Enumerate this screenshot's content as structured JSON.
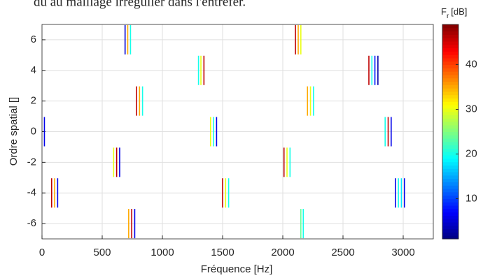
{
  "chart_data": {
    "type": "heatmap",
    "caption": "dû au maillage irrégulier dans l'entrefer.",
    "xlabel": "Fréquence [Hz]",
    "ylabel": "Ordre spatial []",
    "colorbar_label": {
      "main": "F",
      "sub": "r",
      "unit": "[dB]"
    },
    "colormap": "jet",
    "clim": [
      1,
      49
    ],
    "cticks": [
      10,
      20,
      30,
      40
    ],
    "xlim": [
      0,
      3250
    ],
    "ylim": [
      -7,
      7
    ],
    "xticks": [
      0,
      500,
      1000,
      1500,
      2000,
      2500,
      3000
    ],
    "yticks": [
      -6,
      -4,
      -2,
      0,
      2,
      4,
      6
    ],
    "grid": true,
    "x": [
      690,
      712,
      735,
      2105,
      2128,
      2150,
      1300,
      1320,
      1345,
      2715,
      2740,
      2765,
      2790,
      785,
      810,
      835,
      2205,
      2230,
      2255,
      20,
      1400,
      1425,
      1450,
      2850,
      2875,
      2900,
      595,
      620,
      645,
      2010,
      2035,
      2060,
      80,
      105,
      130,
      1500,
      1525,
      1550,
      2935,
      2960,
      2985,
      3010,
      720,
      745,
      770,
      2150,
      2170
    ],
    "y": [
      6,
      6,
      6,
      6,
      6,
      6,
      4,
      4,
      4,
      4,
      4,
      4,
      4,
      2,
      2,
      2,
      2,
      2,
      2,
      0,
      0,
      0,
      0,
      0,
      0,
      0,
      -2,
      -2,
      -2,
      -2,
      -2,
      -2,
      -4,
      -4,
      -4,
      -4,
      -4,
      -4,
      -4,
      -4,
      -4,
      -4,
      -6,
      -6,
      -6,
      -6,
      -6
    ],
    "values": [
      5,
      35,
      20,
      46,
      35,
      30,
      20,
      30,
      46,
      46,
      20,
      8,
      3,
      46,
      35,
      20,
      35,
      30,
      20,
      6,
      30,
      20,
      6,
      20,
      46,
      6,
      30,
      46,
      6,
      46,
      30,
      20,
      46,
      35,
      6,
      46,
      30,
      20,
      6,
      20,
      18,
      6,
      35,
      46,
      6,
      24,
      20
    ]
  }
}
